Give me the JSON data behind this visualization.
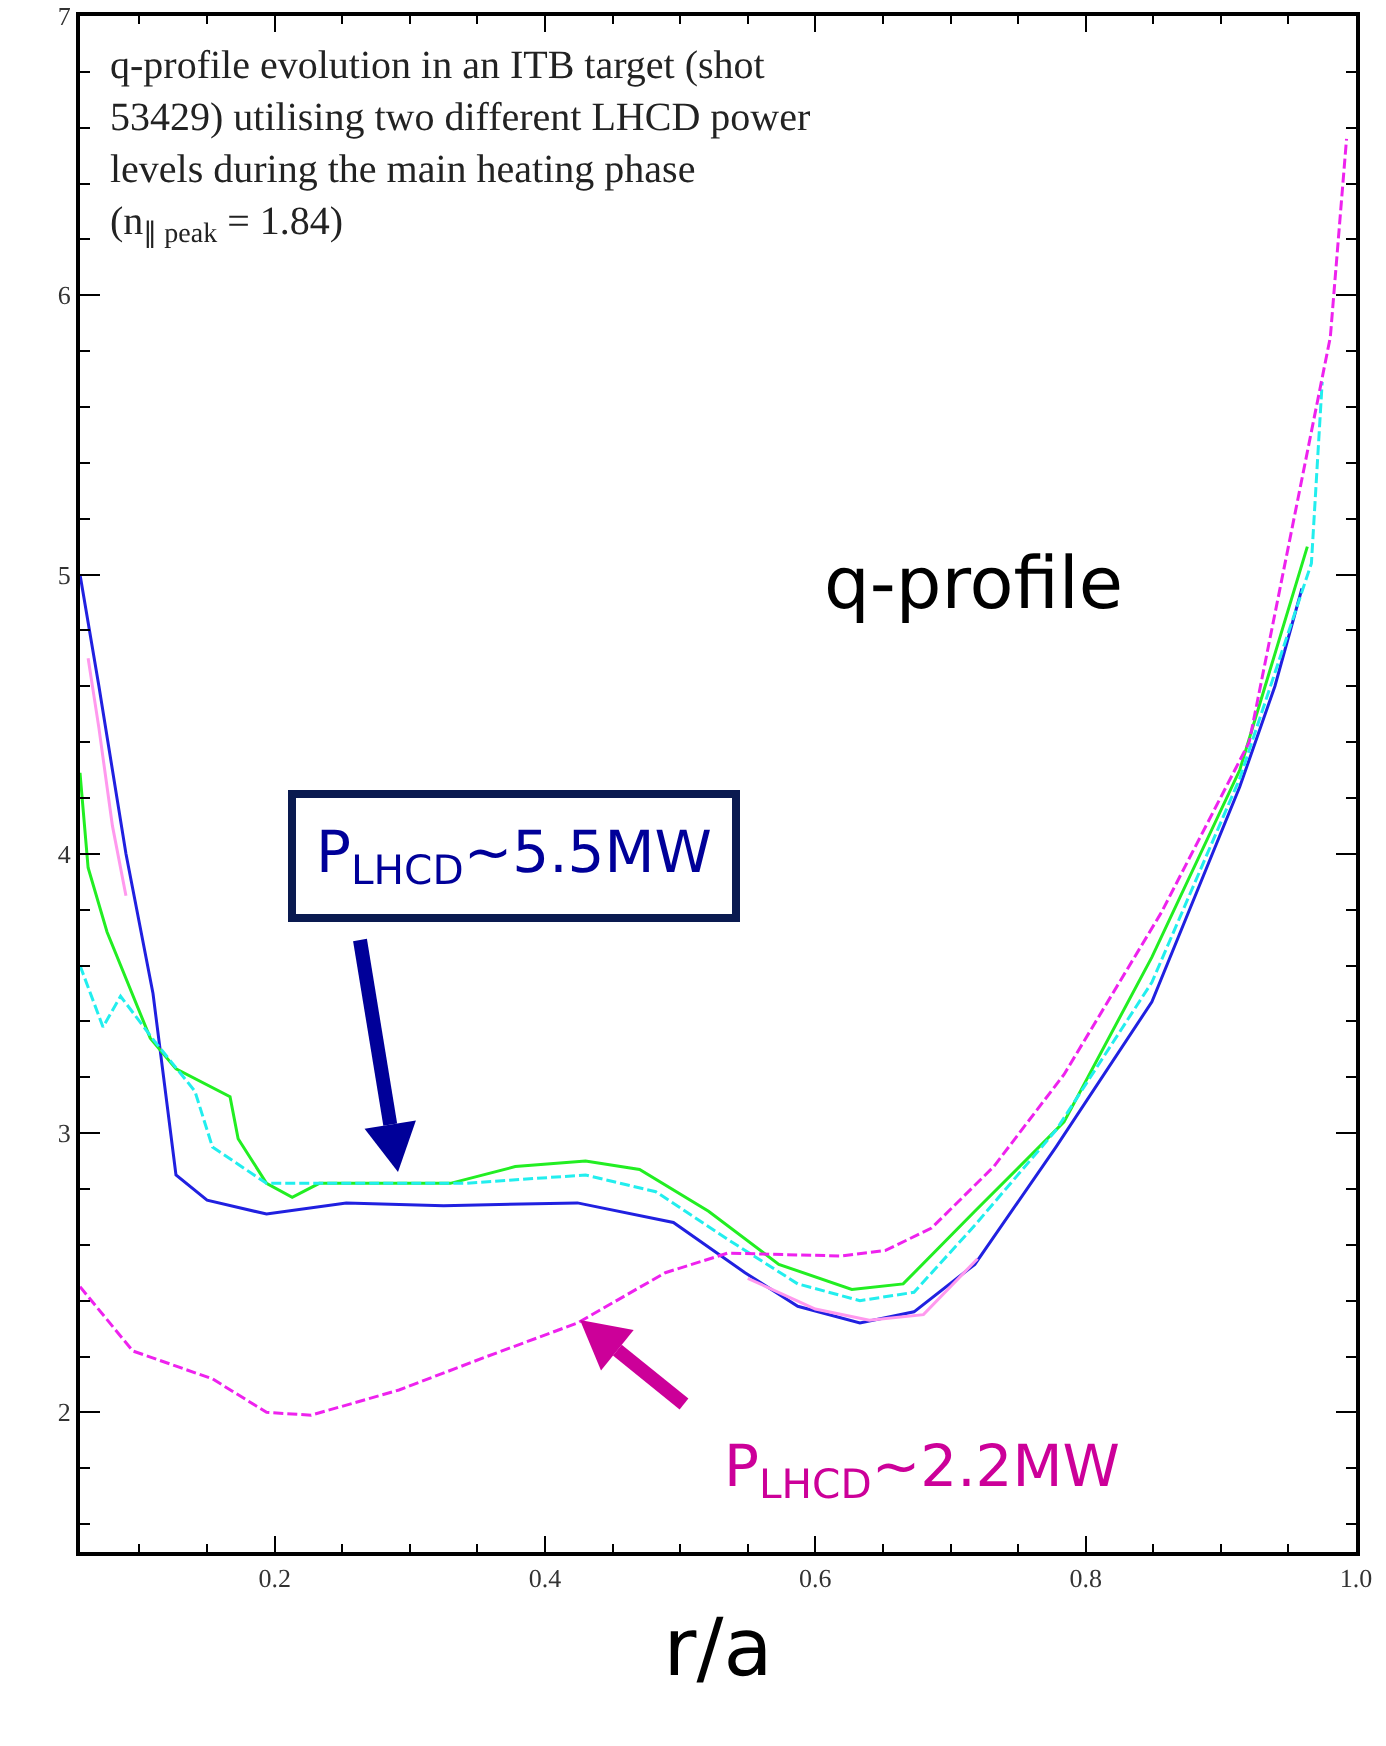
{
  "chart_data": {
    "type": "line",
    "xlabel": "r/a",
    "xlim": [
      0.056,
      1.0
    ],
    "ylim": [
      1.5,
      7
    ],
    "xticks": [
      0.2,
      0.4,
      0.6,
      0.8,
      {
        "value": 1.0,
        "label": "1.0"
      }
    ],
    "yticks": [
      2,
      3,
      4,
      5,
      6,
      7
    ],
    "grid": false,
    "marker": "none",
    "annotations": [
      "q-profile evolution in an ITB target (shot\n53429) utilising two different LHCD power\nlevels during the main heating phase\n(n$_{∥ peak}$ = 1.84)",
      "q-profile",
      "P$_{LHCD}$~5.5MW",
      "P$_{LHCD}$~2.2MW"
    ],
    "series": [
      {
        "color": "#2020e0",
        "line_style": "solid",
        "x": [
          0.056,
          0.07,
          0.09,
          0.11,
          0.127,
          0.15,
          0.194,
          0.253,
          0.325,
          0.424,
          0.495,
          0.548,
          0.587,
          0.633,
          0.673,
          0.718,
          0.778,
          0.849,
          0.914,
          0.94,
          0.96
        ],
        "values": [
          5.0,
          4.6,
          4.0,
          3.5,
          2.85,
          2.76,
          2.71,
          2.75,
          2.74,
          2.75,
          2.68,
          2.5,
          2.38,
          2.32,
          2.36,
          2.53,
          2.95,
          3.47,
          4.24,
          4.6,
          4.95
        ]
      },
      {
        "color": "#ff99ee",
        "line_style": "solid",
        "x": [
          0.062,
          0.07,
          0.08,
          0.09,
          0.1,
          0.55,
          0.6,
          0.64,
          0.68,
          0.72
        ],
        "values": [
          4.7,
          4.45,
          4.1,
          3.85,
          null,
          2.48,
          2.37,
          2.33,
          2.35,
          2.55
        ]
      },
      {
        "color": "#22ee22",
        "line_style": "solid",
        "x": [
          0.056,
          0.062,
          0.076,
          0.108,
          0.127,
          0.167,
          0.173,
          0.194,
          0.213,
          0.233,
          0.279,
          0.33,
          0.378,
          0.43,
          0.47,
          0.521,
          0.573,
          0.627,
          0.665,
          0.718,
          0.784,
          0.849,
          0.914,
          0.964
        ],
        "values": [
          4.29,
          3.95,
          3.72,
          3.34,
          3.23,
          3.13,
          2.98,
          2.82,
          2.77,
          2.82,
          2.82,
          2.82,
          2.88,
          2.9,
          2.87,
          2.72,
          2.53,
          2.44,
          2.46,
          2.72,
          3.04,
          3.63,
          4.3,
          5.1
        ]
      },
      {
        "color": "#22eeee",
        "line_style": "dashed",
        "x": [
          0.056,
          0.073,
          0.086,
          0.111,
          0.141,
          0.154,
          0.194,
          0.259,
          0.34,
          0.43,
          0.482,
          0.535,
          0.587,
          0.633,
          0.673,
          0.718,
          0.778,
          0.849,
          0.914,
          0.967,
          0.975
        ],
        "values": [
          3.6,
          3.38,
          3.49,
          3.33,
          3.15,
          2.95,
          2.82,
          2.82,
          2.82,
          2.85,
          2.79,
          2.62,
          2.46,
          2.4,
          2.43,
          2.67,
          3.01,
          3.54,
          4.27,
          5.04,
          5.69
        ]
      },
      {
        "color": "#ee22ee",
        "line_style": "dashed",
        "x": [
          0.056,
          0.095,
          0.154,
          0.194,
          0.227,
          0.292,
          0.357,
          0.424,
          0.489,
          0.535,
          0.619,
          0.652,
          0.686,
          0.732,
          0.784,
          0.856,
          0.921,
          0.981,
          0.993
        ],
        "values": [
          2.45,
          2.22,
          2.12,
          2.0,
          1.99,
          2.08,
          2.2,
          2.32,
          2.5,
          2.57,
          2.56,
          2.58,
          2.66,
          2.88,
          3.21,
          3.79,
          4.4,
          5.85,
          6.56
        ]
      }
    ]
  }
}
